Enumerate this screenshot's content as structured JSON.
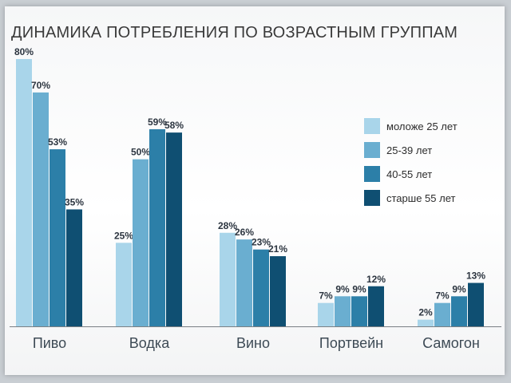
{
  "chart_data": {
    "type": "bar",
    "title": "ДИНАМИКА ПОТРЕБЛЕНИЯ ПО ВОЗРАСТНЫМ ГРУППАМ",
    "categories": [
      "Пиво",
      "Водка",
      "Вино",
      "Портвейн",
      "Самогон"
    ],
    "series": [
      {
        "name": "моложе 25 лет",
        "color": "#a9d5ea",
        "values": [
          80,
          25,
          28,
          7,
          2
        ]
      },
      {
        "name": "25-39 лет",
        "color": "#6aaed0",
        "values": [
          70,
          50,
          26,
          9,
          7
        ]
      },
      {
        "name": "40-55 лет",
        "color": "#2c7fa8",
        "values": [
          53,
          59,
          23,
          9,
          9
        ]
      },
      {
        "name": "старше 55 лет",
        "color": "#0f4f72",
        "values": [
          35,
          58,
          21,
          12,
          13
        ]
      }
    ],
    "value_suffix": "%",
    "ylim": [
      0,
      80
    ],
    "grid": false,
    "legend": "right"
  }
}
